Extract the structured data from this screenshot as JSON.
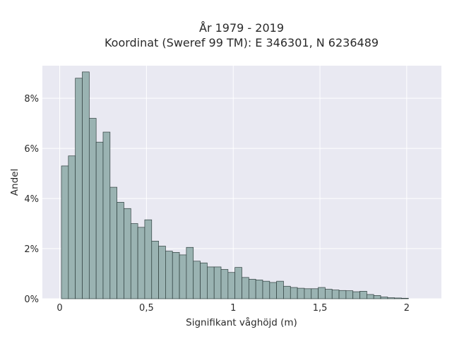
{
  "chart_data": {
    "type": "bar",
    "title": "År 1979 - 2019",
    "subtitle": "Koordinat (Sweref 99 TM): E 346301, N 6236489",
    "xlabel": "Signifikant våghöjd (m)",
    "ylabel": "Andel",
    "xlim": [
      -0.1,
      2.2
    ],
    "ylim": [
      0,
      9.3
    ],
    "x_ticks": [
      {
        "value": 0,
        "label": "0"
      },
      {
        "value": 0.5,
        "label": "0,5"
      },
      {
        "value": 1,
        "label": "1"
      },
      {
        "value": 1.5,
        "label": "1,5"
      },
      {
        "value": 2,
        "label": "2"
      }
    ],
    "y_ticks": [
      {
        "value": 0,
        "label": "0%"
      },
      {
        "value": 2,
        "label": "2%"
      },
      {
        "value": 4,
        "label": "4%"
      },
      {
        "value": 6,
        "label": "6%"
      },
      {
        "value": 8,
        "label": "8%"
      }
    ],
    "grid": true,
    "bin_start": 0.01,
    "bin_width": 0.04,
    "values": [
      5.3,
      5.7,
      8.8,
      9.05,
      7.2,
      6.25,
      6.65,
      4.45,
      3.85,
      3.6,
      3.0,
      2.85,
      3.15,
      2.3,
      2.1,
      1.9,
      1.85,
      1.75,
      2.05,
      1.5,
      1.43,
      1.27,
      1.27,
      1.17,
      1.05,
      1.25,
      0.85,
      0.78,
      0.75,
      0.7,
      0.65,
      0.7,
      0.5,
      0.45,
      0.42,
      0.4,
      0.4,
      0.45,
      0.38,
      0.35,
      0.33,
      0.32,
      0.28,
      0.3,
      0.17,
      0.13,
      0.07,
      0.04,
      0.03,
      0.02
    ],
    "colors": {
      "bar_fill": "#9ab3b2",
      "bar_stroke": "#2f3f3e",
      "plot_bg": "#e9e9f2",
      "grid": "#ffffff"
    }
  }
}
